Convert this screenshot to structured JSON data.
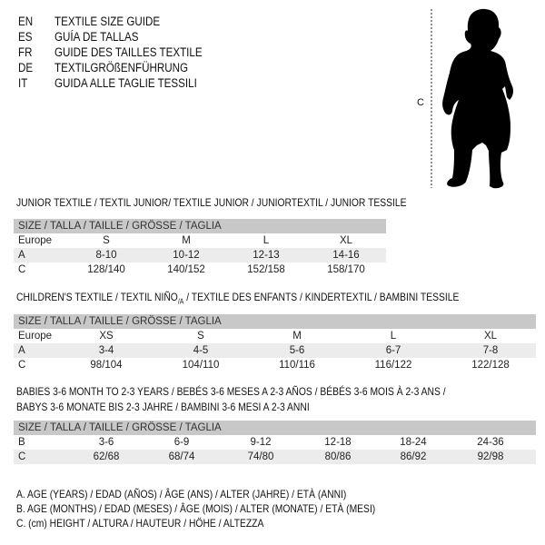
{
  "languages": [
    {
      "code": "EN",
      "label": "TEXTILE SIZE GUIDE"
    },
    {
      "code": "ES",
      "label": "GUÍA DE TALLAS"
    },
    {
      "code": "FR",
      "label": "GUIDE DES TAILLES TEXTILE"
    },
    {
      "code": "DE",
      "label": "TEXTILGRÖßENFÜHRUNG"
    },
    {
      "code": "IT",
      "label": "GUIDA ALLE TAGLIE TESSILI"
    }
  ],
  "figure": {
    "measure_label": "C"
  },
  "junior": {
    "title": "JUNIOR TEXTILE / TEXTIL JUNIOR/ TEXTILE JUNIOR / JUNIORTEXTIL / JUNIOR TESSILE",
    "header": "SIZE / TALLA / TAILLE / GRÖSSE / TAGLIA",
    "rows": [
      {
        "label": "Europe",
        "values": [
          "S",
          "M",
          "L",
          "XL"
        ]
      },
      {
        "label": "A",
        "values": [
          "8-10",
          "10-12",
          "12-13",
          "14-16"
        ]
      },
      {
        "label": "C",
        "values": [
          "128/140",
          "140/152",
          "152/158",
          "158/170"
        ]
      }
    ]
  },
  "children": {
    "title": "CHILDREN'S TEXTILE / TEXTIL NIÑO",
    "title_sub": "/A",
    "title_rest": " / TEXTILE DES ENFANTS / KINDERTEXTIL / BAMBINI TESSILE",
    "header": "SIZE / TALLA / TAILLE / GRÖSSE / TAGLIA",
    "rows": [
      {
        "label": "Europe",
        "values": [
          "XS",
          "S",
          "M",
          "L",
          "XL"
        ]
      },
      {
        "label": "A",
        "values": [
          "3-4",
          "4-5",
          "5-6",
          "6-7",
          "7-8"
        ]
      },
      {
        "label": "C",
        "values": [
          "98/104",
          "104/110",
          "110/116",
          "116/122",
          "122/128"
        ]
      }
    ]
  },
  "babies": {
    "title_line1": "BABIES 3-6 MONTH TO 2-3 YEARS / BEBÉS 3-6 MESES A 2-3 AÑOS / BÉBÉS 3-6 MOIS À 2-3 ANS /",
    "title_line2": "BABYS 3-6 MONATE BIS 2-3 JAHRE / BAMBINI 3-6 MESI A 2-3 ANNI",
    "header": "SIZE / TALLA / TAILLE / GRÖSSE / TAGLIA",
    "rows": [
      {
        "label": "B",
        "values": [
          "3-6",
          "6-9",
          "9-12",
          "12-18",
          "18-24",
          "24-36"
        ]
      },
      {
        "label": "C",
        "values": [
          "62/68",
          "68/74",
          "74/80",
          "80/86",
          "86/92",
          "92/98"
        ]
      }
    ]
  },
  "legend": [
    "A. AGE (YEARS) / EDAD (AÑOS) / ÂGE (ANS) / ALTER (JAHRE) / ETÀ (ANNI)",
    "B. AGE (MONTHS) / EDAD (MESES) / ÂGE (MOIS) / ALTER (MONATE) / ETÀ (MESI)",
    "C. (cm) HEIGHT / ALTURA / HAUTEUR / HÖHE / ALTEZZA"
  ]
}
